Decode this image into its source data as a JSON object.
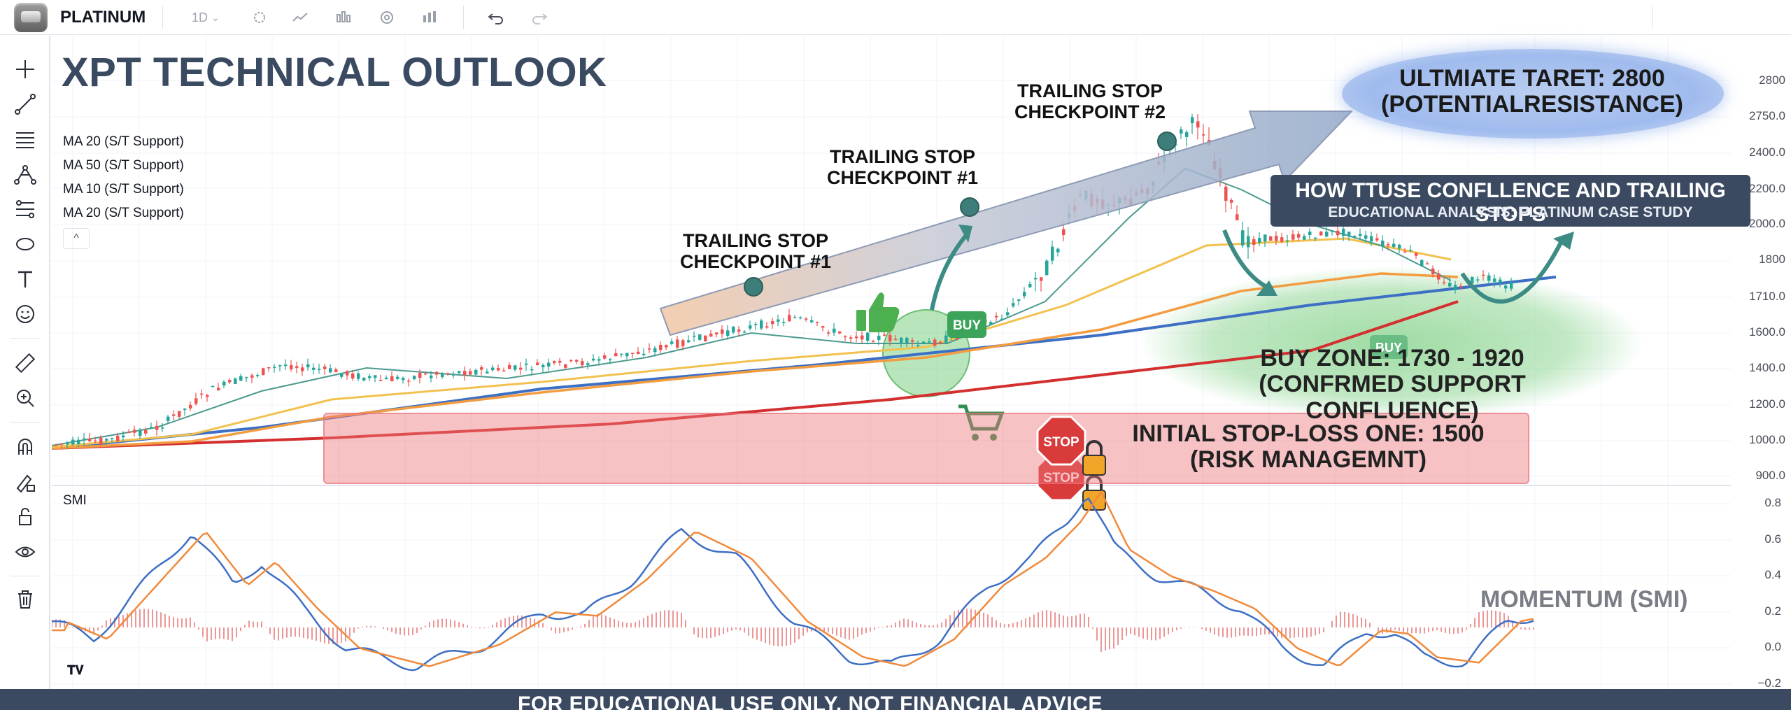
{
  "header": {
    "symbol": "PLATINUM",
    "interval": "1D"
  },
  "title": "XPT TECHNICAL OUTLOOK",
  "legend": {
    "ma_rows": [
      "MA 20 (S/T Support)",
      "MA 50 (S/T Support)",
      "MA 10 (S/T Support)",
      "MA 20 (S/T Support)"
    ],
    "collapse_symbol": "^"
  },
  "annotations": {
    "trailing_stop_1a": [
      "TRAILING STOP",
      "CHECKPOINT #1"
    ],
    "trailing_stop_1b": [
      "TRAILING STOP",
      "CHECKPOINT #1"
    ],
    "trailing_stop_2": [
      "TRAILING STOP",
      "CHECKPOINT #2"
    ],
    "target": [
      "ULTMIATE TARET: 2800",
      "(POTENTIALRESISTANCE)"
    ],
    "howto_title": "HOW TTUSE CONFLLENCE AND TRAILING STOPS",
    "howto_sub": "EDUCATIONAL ANALYSIS: PLATINUM CASE STUDY",
    "buy_zone": [
      "BUY ZONE: 1730 - 1920",
      "(CONFRMED SUPPORT CONFLUENCE)"
    ],
    "stop_loss": [
      "INITIAL STOP-LOSS ONE: 1500",
      "(RISK MANAGEMNT)"
    ],
    "buy_badge": "BUY",
    "buy_badge_2": "BUY",
    "stop_sign": "STOP",
    "momentum": "MOMENTUM (SMI)"
  },
  "price_axis": [
    "2800",
    "2750.0",
    "2400.0",
    "2200.0",
    "2000.0",
    "1800",
    "1710.0",
    "1600.0",
    "1400.0",
    "1200.0",
    "1000.0",
    "900.0"
  ],
  "smi": {
    "label": "SMI",
    "axis": [
      "0.8",
      "0.6",
      "0.4",
      "0.2",
      "0.0",
      "−0.2"
    ]
  },
  "footer": "FOR EDUCATIONAL USE ONLY. NOT FINANCIAL ADVICE",
  "colors": {
    "title": "#3a4a61",
    "bull": "#26a69a",
    "bear": "#ef5350",
    "ma_blue": "#3d6fc4",
    "ma_red": "#d32f2f",
    "ma_orange": "#f39c40",
    "ma_yellow": "#f2c14e",
    "ma_teal": "#4c9a8f",
    "footer_bg": "#3b4a61"
  },
  "icons": {
    "toolbar_top": [
      "interval-dropdown",
      "indicator-icon",
      "line-chart-icon",
      "bar-chart-icon",
      "settings-icon",
      "indicators-icon",
      "undo-icon",
      "redo-icon"
    ],
    "toolbar_left": [
      "crosshair-icon",
      "trendline-icon",
      "lines-icon",
      "pitchfork-icon",
      "fib-icon",
      "shapes-icon",
      "text-icon",
      "emoji-icon",
      "ruler-icon",
      "zoom-icon",
      "magnet-icon",
      "lock-drawing-icon",
      "lock-icon",
      "eye-icon",
      "trash-icon"
    ]
  }
}
